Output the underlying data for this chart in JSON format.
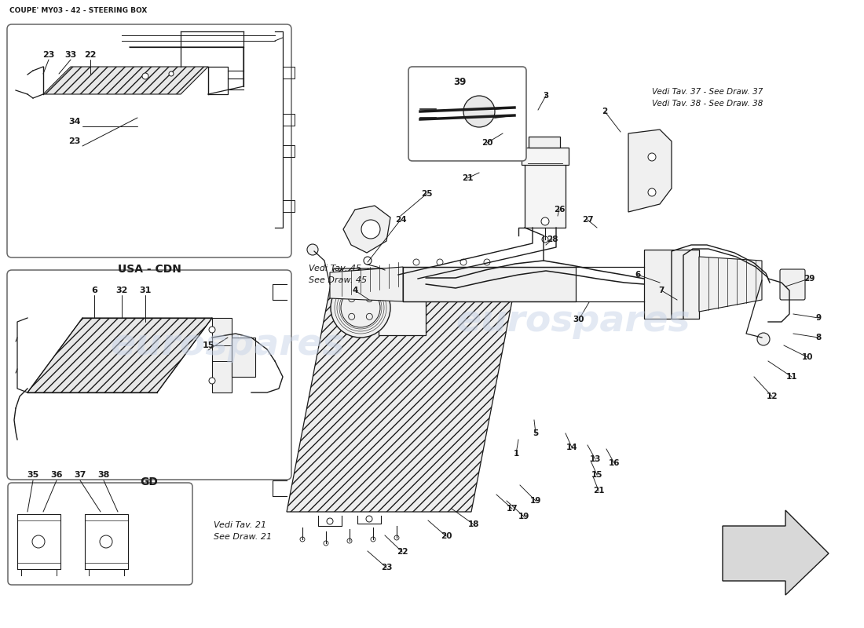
{
  "title": "COUPE' MY03 - 42 - STEERING BOX",
  "bg": "#ffffff",
  "lc": "#1a1a1a",
  "wm": "eurospares",
  "wm_color": "#c8d4e8",
  "ref1": "Vedi Tav. 37 - See Draw. 37",
  "ref2": "Vedi Tav. 38 - See Draw. 38",
  "ref3": "Vedi Tav. 45",
  "ref4": "See Draw. 45",
  "ref5": "Vedi Tav. 21",
  "ref6": "See Draw. 21",
  "usa_label": "USA - CDN",
  "gd_label": "GD",
  "usa_parts": [
    [
      "23",
      62,
      730
    ],
    [
      "33",
      90,
      730
    ],
    [
      "22",
      115,
      730
    ],
    [
      "34",
      95,
      645
    ],
    [
      "23",
      95,
      620
    ]
  ],
  "gd_parts": [
    [
      "6",
      120,
      430
    ],
    [
      "32",
      155,
      430
    ],
    [
      "31",
      185,
      430
    ],
    [
      "15",
      265,
      360
    ]
  ],
  "small_parts": [
    [
      "35",
      42,
      195
    ],
    [
      "36",
      72,
      195
    ],
    [
      "37",
      102,
      195
    ],
    [
      "38",
      132,
      195
    ]
  ],
  "main_parts": [
    [
      "39",
      610,
      695
    ],
    [
      "20",
      620,
      613
    ],
    [
      "3",
      695,
      673
    ],
    [
      "2",
      765,
      658
    ],
    [
      "21",
      590,
      568
    ],
    [
      "25",
      540,
      548
    ],
    [
      "24",
      505,
      518
    ],
    [
      "4",
      450,
      430
    ],
    [
      "26",
      710,
      530
    ],
    [
      "27",
      745,
      518
    ],
    [
      "28",
      700,
      493
    ],
    [
      "6",
      810,
      448
    ],
    [
      "7",
      840,
      428
    ],
    [
      "29",
      1025,
      443
    ],
    [
      "9",
      1040,
      393
    ],
    [
      "8",
      1040,
      368
    ],
    [
      "10",
      1025,
      343
    ],
    [
      "11",
      1005,
      318
    ],
    [
      "12",
      980,
      293
    ],
    [
      "30",
      735,
      393
    ],
    [
      "5",
      680,
      248
    ],
    [
      "1",
      655,
      223
    ],
    [
      "14",
      725,
      228
    ],
    [
      "13",
      755,
      213
    ],
    [
      "15",
      755,
      193
    ],
    [
      "16",
      780,
      208
    ],
    [
      "21",
      760,
      173
    ],
    [
      "17",
      650,
      153
    ],
    [
      "18",
      600,
      133
    ],
    [
      "19",
      665,
      143
    ],
    [
      "19",
      680,
      158
    ],
    [
      "20",
      565,
      118
    ],
    [
      "22",
      510,
      98
    ],
    [
      "23",
      490,
      78
    ]
  ]
}
